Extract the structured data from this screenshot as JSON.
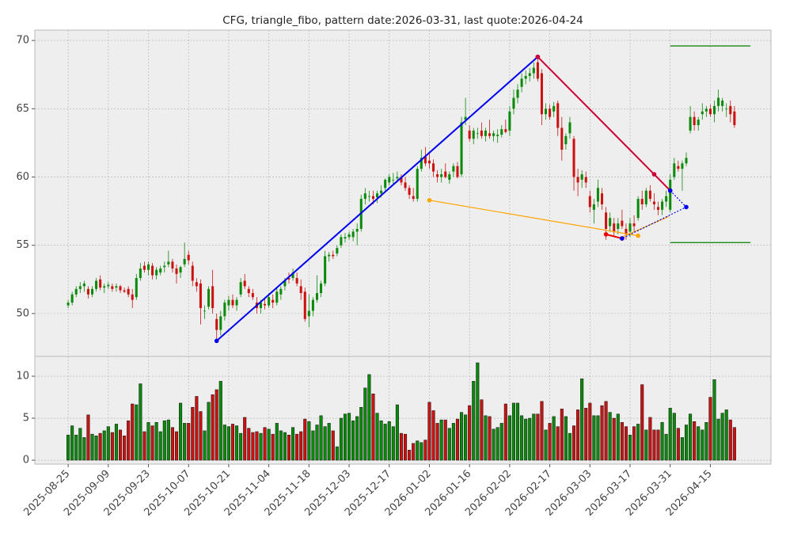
{
  "chart_data": {
    "type": "candlestick",
    "title": "CFG, triangle_fibo, pattern date:2026-03-31, last quote:2026-04-24",
    "grid": true,
    "up_color": "#0a8a0a",
    "down_color": "#cc1111",
    "xlim": [
      -8.3,
      175.1
    ],
    "xticks": [
      {
        "value": 0,
        "label": "2025-08-25"
      },
      {
        "value": 10,
        "label": "2025-09-09"
      },
      {
        "value": 20,
        "label": "2025-09-23"
      },
      {
        "value": 30,
        "label": "2025-10-07"
      },
      {
        "value": 40,
        "label": "2025-10-21"
      },
      {
        "value": 50,
        "label": "2025-11-04"
      },
      {
        "value": 60,
        "label": "2025-11-18"
      },
      {
        "value": 70,
        "label": "2025-12-03"
      },
      {
        "value": 80,
        "label": "2025-12-17"
      },
      {
        "value": 90,
        "label": "2026-01-02"
      },
      {
        "value": 100,
        "label": "2026-01-16"
      },
      {
        "value": 110,
        "label": "2026-02-02"
      },
      {
        "value": 120,
        "label": "2026-02-17"
      },
      {
        "value": 130,
        "label": "2026-03-03"
      },
      {
        "value": 140,
        "label": "2026-03-17"
      },
      {
        "value": 150,
        "label": "2026-03-31"
      },
      {
        "value": 160,
        "label": "2026-04-15"
      }
    ],
    "ylim": [
      46.86,
      70.76
    ],
    "yticks": [
      50,
      55,
      60,
      65,
      70
    ],
    "volume_ylim": [
      -0.47,
      12.36
    ],
    "volume_yticks": [
      0,
      5,
      10
    ],
    "ohlc": [
      [
        50.6,
        51.0,
        50.4,
        50.8
      ],
      [
        50.8,
        51.6,
        50.6,
        51.4
      ],
      [
        51.4,
        52.0,
        51.2,
        51.8
      ],
      [
        51.8,
        52.3,
        51.5,
        52.0
      ],
      [
        52.0,
        52.4,
        51.6,
        52.2
      ],
      [
        51.8,
        52.0,
        51.1,
        51.4
      ],
      [
        51.4,
        52.0,
        51.2,
        51.8
      ],
      [
        51.8,
        52.6,
        51.6,
        52.4
      ],
      [
        52.5,
        52.8,
        51.7,
        51.9
      ],
      [
        51.9,
        52.2,
        51.5,
        52.0
      ],
      [
        52.0,
        52.3,
        51.8,
        52.1
      ],
      [
        52.0,
        52.2,
        51.6,
        51.8
      ],
      [
        51.9,
        52.2,
        51.6,
        52.0
      ],
      [
        52.0,
        52.1,
        51.5,
        51.7
      ],
      [
        51.7,
        51.9,
        51.5,
        51.6
      ],
      [
        51.8,
        52.0,
        51.2,
        51.4
      ],
      [
        51.4,
        51.8,
        50.4,
        51.0
      ],
      [
        51.2,
        52.9,
        51.0,
        52.6
      ],
      [
        52.6,
        53.7,
        52.4,
        53.3
      ],
      [
        53.5,
        53.8,
        53.0,
        53.2
      ],
      [
        53.2,
        53.8,
        52.8,
        53.6
      ],
      [
        53.5,
        53.7,
        52.5,
        52.8
      ],
      [
        52.8,
        53.4,
        52.5,
        53.2
      ],
      [
        53.0,
        53.5,
        52.8,
        53.3
      ],
      [
        53.4,
        53.8,
        53.0,
        53.5
      ],
      [
        53.6,
        54.6,
        53.4,
        53.8
      ],
      [
        53.8,
        54.0,
        53.0,
        53.3
      ],
      [
        53.3,
        53.6,
        52.2,
        52.9
      ],
      [
        53.0,
        53.5,
        52.6,
        53.4
      ],
      [
        53.6,
        55.2,
        53.4,
        54.0
      ],
      [
        54.3,
        54.6,
        53.6,
        53.9
      ],
      [
        53.5,
        53.8,
        52.0,
        52.4
      ],
      [
        52.3,
        52.6,
        51.6,
        52.0
      ],
      [
        52.2,
        52.5,
        49.2,
        50.4
      ],
      [
        50.2,
        50.6,
        49.6,
        50.2
      ],
      [
        50.5,
        52.0,
        50.3,
        51.8
      ],
      [
        52.0,
        53.2,
        50.0,
        50.4
      ],
      [
        49.6,
        50.0,
        48.0,
        48.8
      ],
      [
        48.8,
        50.2,
        48.4,
        49.8
      ],
      [
        49.8,
        51.0,
        49.5,
        50.8
      ],
      [
        50.6,
        51.3,
        50.2,
        51.0
      ],
      [
        51.0,
        51.4,
        50.4,
        50.6
      ],
      [
        50.6,
        51.2,
        50.2,
        51.0
      ],
      [
        51.4,
        52.6,
        51.2,
        52.3
      ],
      [
        52.4,
        52.9,
        51.8,
        52.0
      ],
      [
        51.8,
        52.0,
        51.2,
        51.5
      ],
      [
        51.5,
        51.8,
        51.0,
        51.2
      ],
      [
        50.8,
        51.2,
        50.0,
        50.4
      ],
      [
        50.4,
        51.0,
        50.0,
        50.8
      ],
      [
        50.7,
        51.1,
        50.3,
        50.6
      ],
      [
        50.6,
        51.5,
        50.4,
        51.2
      ],
      [
        51.0,
        51.4,
        50.4,
        50.8
      ],
      [
        50.8,
        51.9,
        50.6,
        51.6
      ],
      [
        51.4,
        52.0,
        51.0,
        51.8
      ],
      [
        52.0,
        52.6,
        51.7,
        52.4
      ],
      [
        52.6,
        53.0,
        52.2,
        52.5
      ],
      [
        52.6,
        53.3,
        52.4,
        53.0
      ],
      [
        52.6,
        53.0,
        52.0,
        52.2
      ],
      [
        52.0,
        52.5,
        51.0,
        51.5
      ],
      [
        51.6,
        51.9,
        49.4,
        49.6
      ],
      [
        49.8,
        51.4,
        49.0,
        50.2
      ],
      [
        50.2,
        51.2,
        49.8,
        51.0
      ],
      [
        51.0,
        52.8,
        50.8,
        51.5
      ],
      [
        51.5,
        52.4,
        51.2,
        52.2
      ],
      [
        52.2,
        54.6,
        52.0,
        54.2
      ],
      [
        54.2,
        54.5,
        53.8,
        54.3
      ],
      [
        54.3,
        54.6,
        54.0,
        54.2
      ],
      [
        54.4,
        55.0,
        54.2,
        54.8
      ],
      [
        55.0,
        55.8,
        54.8,
        55.6
      ],
      [
        55.5,
        55.9,
        55.2,
        55.6
      ],
      [
        55.6,
        56.0,
        55.4,
        55.8
      ],
      [
        55.6,
        56.2,
        55.3,
        56.0
      ],
      [
        56.0,
        56.6,
        55.0,
        56.2
      ],
      [
        56.2,
        58.7,
        56.0,
        58.4
      ],
      [
        58.4,
        59.2,
        58.0,
        58.8
      ],
      [
        58.6,
        59.0,
        58.2,
        58.6
      ],
      [
        58.6,
        59.0,
        58.0,
        58.4
      ],
      [
        58.5,
        59.0,
        58.1,
        58.8
      ],
      [
        58.8,
        59.4,
        58.5,
        59.0
      ],
      [
        59.2,
        59.9,
        59.0,
        59.8
      ],
      [
        59.6,
        60.2,
        59.4,
        60.0
      ],
      [
        59.8,
        60.3,
        59.4,
        59.8
      ],
      [
        59.9,
        60.4,
        59.6,
        60.0
      ],
      [
        60.0,
        60.2,
        59.4,
        59.6
      ],
      [
        59.6,
        60.0,
        59.0,
        59.2
      ],
      [
        59.2,
        59.4,
        58.4,
        58.7
      ],
      [
        58.6,
        59.2,
        58.2,
        58.4
      ],
      [
        58.4,
        60.8,
        58.2,
        60.6
      ],
      [
        60.6,
        62.0,
        60.4,
        61.4
      ],
      [
        61.5,
        62.2,
        60.8,
        61.0
      ],
      [
        61.2,
        61.8,
        60.6,
        61.0
      ],
      [
        61.0,
        61.3,
        60.0,
        60.4
      ],
      [
        60.2,
        60.5,
        59.6,
        60.0
      ],
      [
        60.0,
        60.6,
        59.6,
        60.2
      ],
      [
        60.4,
        61.0,
        59.9,
        60.0
      ],
      [
        59.8,
        60.4,
        59.5,
        60.2
      ],
      [
        60.4,
        61.0,
        60.0,
        60.8
      ],
      [
        60.8,
        61.1,
        59.9,
        60.0
      ],
      [
        60.2,
        64.4,
        60.0,
        64.0
      ],
      [
        64.2,
        65.8,
        63.8,
        64.4
      ],
      [
        63.4,
        63.8,
        62.6,
        62.8
      ],
      [
        62.8,
        63.6,
        62.4,
        63.4
      ],
      [
        63.2,
        63.6,
        62.8,
        63.2
      ],
      [
        63.4,
        64.0,
        62.8,
        63.0
      ],
      [
        63.0,
        63.6,
        62.6,
        63.4
      ],
      [
        63.2,
        64.2,
        62.8,
        63.0
      ],
      [
        63.0,
        63.4,
        62.6,
        63.2
      ],
      [
        63.0,
        63.5,
        62.5,
        63.1
      ],
      [
        63.1,
        63.8,
        62.9,
        63.5
      ],
      [
        63.5,
        64.2,
        63.2,
        63.3
      ],
      [
        63.4,
        65.2,
        63.0,
        64.8
      ],
      [
        65.0,
        66.4,
        64.6,
        65.8
      ],
      [
        65.8,
        66.8,
        65.4,
        66.4
      ],
      [
        66.6,
        67.6,
        66.2,
        67.2
      ],
      [
        67.2,
        67.8,
        66.8,
        67.4
      ],
      [
        67.4,
        68.0,
        67.0,
        67.6
      ],
      [
        67.6,
        68.4,
        67.2,
        68.0
      ],
      [
        68.4,
        68.8,
        67.0,
        67.2
      ],
      [
        67.6,
        67.9,
        63.8,
        64.6
      ],
      [
        64.6,
        65.4,
        64.2,
        65.0
      ],
      [
        65.0,
        65.3,
        64.2,
        64.4
      ],
      [
        64.8,
        65.5,
        64.4,
        65.2
      ],
      [
        65.4,
        65.6,
        63.0,
        63.6
      ],
      [
        63.6,
        64.4,
        61.2,
        62.0
      ],
      [
        62.4,
        63.2,
        62.0,
        63.0
      ],
      [
        63.2,
        64.4,
        62.8,
        64.0
      ],
      [
        62.8,
        63.0,
        59.0,
        60.0
      ],
      [
        60.0,
        60.6,
        58.6,
        59.6
      ],
      [
        59.8,
        60.5,
        59.2,
        60.2
      ],
      [
        60.0,
        60.4,
        59.2,
        59.6
      ],
      [
        58.6,
        59.0,
        57.4,
        57.8
      ],
      [
        57.6,
        58.4,
        56.6,
        58.0
      ],
      [
        58.2,
        59.8,
        57.8,
        59.2
      ],
      [
        58.8,
        59.2,
        57.6,
        58.0
      ],
      [
        57.4,
        57.8,
        55.4,
        56.2
      ],
      [
        56.4,
        57.4,
        56.0,
        57.0
      ],
      [
        56.6,
        57.0,
        55.6,
        56.0
      ],
      [
        56.2,
        57.0,
        55.8,
        56.6
      ],
      [
        56.8,
        57.6,
        56.2,
        56.4
      ],
      [
        56.2,
        56.6,
        55.4,
        55.8
      ],
      [
        56.0,
        57.0,
        55.6,
        56.6
      ],
      [
        56.6,
        57.2,
        56.0,
        56.4
      ],
      [
        57.0,
        58.6,
        56.8,
        58.4
      ],
      [
        58.4,
        59.0,
        57.6,
        58.0
      ],
      [
        58.0,
        59.2,
        57.8,
        59.0
      ],
      [
        59.0,
        59.4,
        58.2,
        58.4
      ],
      [
        58.2,
        58.8,
        57.6,
        58.0
      ],
      [
        57.8,
        58.2,
        57.2,
        57.6
      ],
      [
        57.6,
        58.4,
        57.2,
        58.2
      ],
      [
        58.2,
        59.0,
        57.8,
        58.6
      ],
      [
        57.6,
        60.2,
        57.4,
        59.8
      ],
      [
        60.0,
        61.4,
        59.8,
        61.0
      ],
      [
        60.8,
        61.2,
        60.4,
        60.6
      ],
      [
        60.6,
        61.2,
        59.0,
        61.0
      ],
      [
        61.0,
        61.8,
        60.8,
        61.4
      ],
      [
        63.4,
        65.2,
        63.2,
        64.4
      ],
      [
        64.4,
        64.8,
        63.4,
        63.8
      ],
      [
        63.8,
        64.4,
        63.4,
        64.2
      ],
      [
        64.6,
        65.4,
        64.2,
        64.8
      ],
      [
        64.8,
        65.2,
        64.4,
        65.0
      ],
      [
        65.0,
        65.3,
        64.4,
        64.6
      ],
      [
        64.6,
        65.6,
        64.0,
        65.2
      ],
      [
        65.2,
        66.4,
        64.8,
        65.8
      ],
      [
        65.2,
        65.8,
        64.8,
        65.6
      ],
      [
        65.0,
        65.4,
        64.4,
        65.0
      ],
      [
        65.2,
        65.6,
        64.0,
        64.6
      ],
      [
        64.8,
        65.2,
        63.6,
        63.8
      ]
    ],
    "volume": [
      3.0,
      4.1,
      3.0,
      3.8,
      2.7,
      5.4,
      3.1,
      2.9,
      3.2,
      3.5,
      4.0,
      3.3,
      4.3,
      3.6,
      2.9,
      4.7,
      6.7,
      6.6,
      9.1,
      3.4,
      4.5,
      4.1,
      4.5,
      3.4,
      4.7,
      4.8,
      3.9,
      3.4,
      6.8,
      4.4,
      4.4,
      6.3,
      7.6,
      5.8,
      3.5,
      6.9,
      7.8,
      8.4,
      9.4,
      4.2,
      4.0,
      4.3,
      4.1,
      3.2,
      5.1,
      3.8,
      3.3,
      3.4,
      3.2,
      3.9,
      3.7,
      3.1,
      4.4,
      3.5,
      3.3,
      3.0,
      3.9,
      3.1,
      3.4,
      4.9,
      4.6,
      3.5,
      4.2,
      5.3,
      4.0,
      4.4,
      3.5,
      1.6,
      5.0,
      5.5,
      5.6,
      4.7,
      5.2,
      6.3,
      8.6,
      10.2,
      7.9,
      5.6,
      4.7,
      4.3,
      4.6,
      4.0,
      6.6,
      3.2,
      3.1,
      1.2,
      2.0,
      2.3,
      2.1,
      2.4,
      6.9,
      5.9,
      4.4,
      4.8,
      4.8,
      3.8,
      4.4,
      4.9,
      5.7,
      5.4,
      6.5,
      9.4,
      11.6,
      7.2,
      5.3,
      5.2,
      3.7,
      3.9,
      4.4,
      6.7,
      5.3,
      6.8,
      6.8,
      5.3,
      4.9,
      5.0,
      5.5,
      5.5,
      7.0,
      3.6,
      4.4,
      5.2,
      4.0,
      6.1,
      5.2,
      3.2,
      4.1,
      6.0,
      9.7,
      6.2,
      6.8,
      5.3,
      5.3,
      6.5,
      7.0,
      5.7,
      5.0,
      5.5,
      4.5,
      4.0,
      3.0,
      4.0,
      4.3,
      9.0,
      3.6,
      5.1,
      3.6,
      3.6,
      4.5,
      3.1,
      6.2,
      5.6,
      3.8,
      2.7,
      4.2,
      5.5,
      4.6,
      4.0,
      3.6,
      4.5,
      7.5,
      9.6,
      4.9,
      5.6,
      6.0,
      4.8,
      3.9
    ],
    "overlays": [
      {
        "color": "#0000ee",
        "style": "solid",
        "markers": true,
        "points": [
          [
            37,
            48.0
          ],
          [
            117,
            68.8
          ]
        ]
      },
      {
        "color": "#cc0033",
        "style": "solid",
        "markers": true,
        "points": [
          [
            117,
            68.8
          ],
          [
            146,
            60.2
          ],
          [
            150,
            59.0
          ]
        ]
      },
      {
        "color": "#ee0000",
        "style": "solid",
        "markers": true,
        "points": [
          [
            134,
            55.8
          ],
          [
            138,
            55.5
          ]
        ]
      },
      {
        "color": "#ffa500",
        "style": "solid",
        "markers": true,
        "points": [
          [
            90,
            58.3
          ],
          [
            142,
            55.7
          ]
        ]
      },
      {
        "color": "#ffa500",
        "style": "solid",
        "markers": false,
        "points": [
          [
            138,
            55.6
          ],
          [
            149.6,
            57.1
          ]
        ]
      },
      {
        "color": "#0000ee",
        "style": "dotted",
        "markers": true,
        "points": [
          [
            150,
            59.0
          ],
          [
            154,
            57.8
          ],
          [
            138,
            55.5
          ]
        ]
      },
      {
        "color": "#008000",
        "style": "solid",
        "markers": false,
        "points": [
          [
            150,
            69.6
          ],
          [
            170,
            69.6
          ]
        ]
      },
      {
        "color": "#008000",
        "style": "solid",
        "markers": false,
        "points": [
          [
            150,
            55.2
          ],
          [
            170,
            55.2
          ]
        ]
      }
    ]
  }
}
